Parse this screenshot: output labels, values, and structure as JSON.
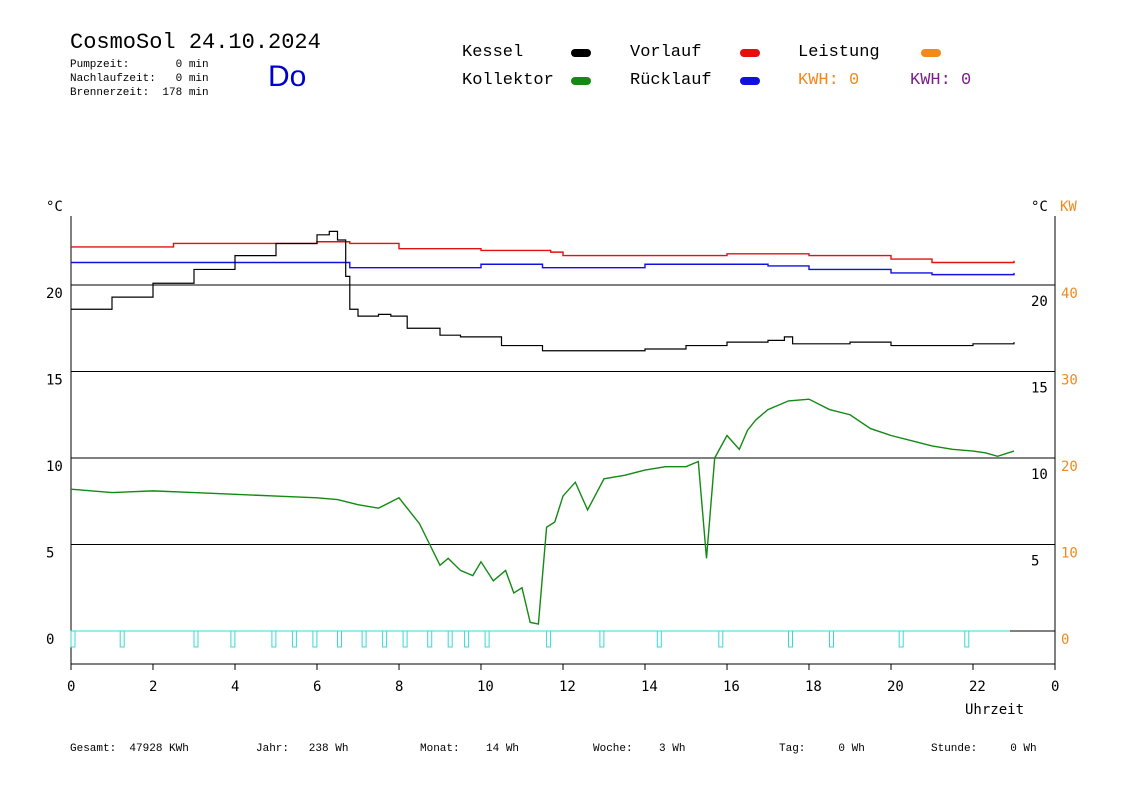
{
  "header": {
    "title": "CosmoSol 24.10.2024",
    "day": "Do",
    "pumpzeit": "Pumpzeit:       0 min",
    "nachlaufzeit": "Nachlaufzeit:   0 min",
    "brennerzeit": "Brennerzeit:  178 min"
  },
  "legend": {
    "kessel": "Kessel",
    "kollektor": "Kollektor",
    "vorlauf": "Vorlauf",
    "ruecklauf": "Rücklauf",
    "leistung": "Leistung",
    "kwh1": "KWH: 0",
    "kwh2": "KWH: 0"
  },
  "colors": {
    "kessel": "#000000",
    "kollektor": "#138a13",
    "vorlauf": "#e31010",
    "ruecklauf": "#1010e0",
    "leistung": "#f08a1c",
    "kwh2": "#7a1f8a",
    "pump": "#38d8d8"
  },
  "footer": {
    "gesamt": "Gesamt:  47928 KWh",
    "jahr": "Jahr:   238 Wh",
    "monat": "Monat:    14 Wh",
    "woche": "Woche:    3 Wh",
    "tag": "Tag:     0 Wh",
    "stunde": "Stunde:     0 Wh"
  },
  "chart_data": {
    "type": "line",
    "xlabel": "Uhrzeit",
    "ylabel_left": "°C",
    "ylabel_right": "°C",
    "ylabel_right2": "KW",
    "xlim": [
      0,
      24
    ],
    "ylim": [
      -2,
      24
    ],
    "x_ticks": [
      "0",
      "2",
      "4",
      "6",
      "8",
      "10",
      "12",
      "14",
      "16",
      "18",
      "20",
      "22",
      "0"
    ],
    "y_ticks_left": [
      "0",
      "5",
      "10",
      "15",
      "20"
    ],
    "y_ticks_right": [
      "5",
      "10",
      "15",
      "20"
    ],
    "y_ticks_kw": [
      "0",
      "10",
      "20",
      "30",
      "40"
    ],
    "grid": true,
    "series": [
      {
        "name": "Vorlauf",
        "x": [
          0,
          2.5,
          6,
          6.8,
          8,
          10,
          11.7,
          12,
          16,
          18,
          20,
          21,
          23
        ],
        "y": [
          22.2,
          22.4,
          22.5,
          22.4,
          22.1,
          22.0,
          21.9,
          21.7,
          21.8,
          21.7,
          21.5,
          21.3,
          21.4
        ]
      },
      {
        "name": "Rücklauf",
        "x": [
          0,
          6,
          6.8,
          8,
          10,
          11.5,
          12,
          14,
          17,
          18,
          20,
          21,
          23
        ],
        "y": [
          21.3,
          21.3,
          21.0,
          21.0,
          21.2,
          21.0,
          21.0,
          21.2,
          21.1,
          20.9,
          20.7,
          20.6,
          20.7
        ]
      },
      {
        "name": "Kessel",
        "x": [
          0,
          1,
          2,
          3,
          4,
          5,
          6,
          6.3,
          6.5,
          6.7,
          6.8,
          7.0,
          7.5,
          7.8,
          8.2,
          9,
          9.5,
          10.5,
          11,
          11.5,
          12,
          13,
          14,
          15,
          16,
          17,
          17.4,
          17.6,
          18,
          19,
          20,
          21,
          22,
          23
        ],
        "y": [
          18.6,
          19.3,
          20.1,
          20.9,
          21.7,
          22.4,
          22.9,
          23.1,
          22.6,
          20.5,
          18.6,
          18.2,
          18.3,
          18.2,
          17.5,
          17.1,
          17.0,
          16.5,
          16.5,
          16.2,
          16.2,
          16.2,
          16.3,
          16.5,
          16.7,
          16.8,
          17.0,
          16.6,
          16.6,
          16.7,
          16.5,
          16.5,
          16.6,
          16.7
        ]
      },
      {
        "name": "Kollektor",
        "x": [
          0,
          1,
          2,
          3,
          4,
          5,
          6,
          6.5,
          7,
          7.5,
          8,
          8.5,
          9,
          9.2,
          9.5,
          9.8,
          10,
          10.3,
          10.6,
          10.8,
          11,
          11.2,
          11.4,
          11.6,
          11.8,
          12,
          12.3,
          12.6,
          13,
          13.5,
          14,
          14.5,
          15,
          15.3,
          15.5,
          15.7,
          16,
          16.3,
          16.5,
          16.7,
          17,
          17.5,
          18,
          18.5,
          19,
          19.5,
          20,
          20.5,
          21,
          21.5,
          22,
          22.3,
          22.6,
          23
        ],
        "y": [
          8.2,
          8.0,
          8.1,
          8.0,
          7.9,
          7.8,
          7.7,
          7.6,
          7.3,
          7.1,
          7.7,
          6.2,
          3.8,
          4.2,
          3.5,
          3.2,
          4.0,
          2.9,
          3.5,
          2.2,
          2.5,
          0.5,
          0.4,
          6.0,
          6.3,
          7.8,
          8.6,
          7.0,
          8.8,
          9.0,
          9.3,
          9.5,
          9.5,
          9.8,
          4.2,
          10.0,
          11.3,
          10.5,
          11.6,
          12.2,
          12.8,
          13.3,
          13.4,
          12.8,
          12.5,
          11.7,
          11.3,
          11.0,
          10.7,
          10.5,
          10.4,
          10.3,
          10.1,
          10.4
        ]
      },
      {
        "name": "Pumpe",
        "x": [
          0,
          1.2,
          3.0,
          3.9,
          4.9,
          5.4,
          5.9,
          6.5,
          7.1,
          7.6,
          8.1,
          8.7,
          9.2,
          9.6,
          10.1,
          11.6,
          12.9,
          14.3,
          15.8,
          17.5,
          18.5,
          20.2,
          21.8
        ],
        "y": [
          -0.5,
          -0.5,
          -0.5,
          -0.5,
          -0.5,
          -0.5,
          -0.5,
          -0.5,
          -0.5,
          -0.5,
          -0.5,
          -0.5,
          -0.5,
          -0.5,
          -0.5,
          -0.5,
          -0.5,
          -0.5,
          -0.5,
          -0.5,
          -0.5,
          -0.5,
          -0.5
        ]
      }
    ]
  }
}
